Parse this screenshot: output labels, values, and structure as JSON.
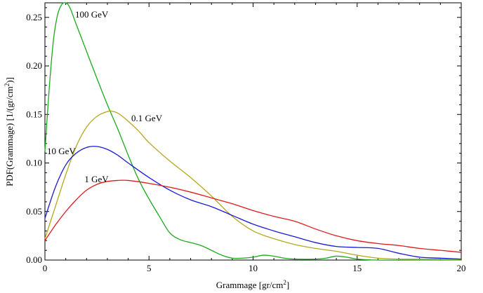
{
  "chart_data": {
    "type": "line",
    "xlabel": "Grammage [gr/cm",
    "xlabel_sup": "2",
    "xlabel_end": "]",
    "ylabel": "PDF(Grammage) [1/(gr/cm",
    "ylabel_sup": "2",
    "ylabel_end": ")]",
    "xlim": [
      0,
      20
    ],
    "ylim": [
      0,
      0.265
    ],
    "xticks": [
      0,
      5,
      10,
      15,
      20
    ],
    "xtick_labels": [
      "0",
      "5",
      "10",
      "15",
      "20"
    ],
    "yticks": [
      0.0,
      0.05,
      0.1,
      0.15,
      0.2,
      0.25
    ],
    "ytick_labels": [
      "0.00",
      "0.05",
      "0.10",
      "0.15",
      "0.20",
      "0.25"
    ],
    "grid": false,
    "series": [
      {
        "name": "100 GeV",
        "color": "#1aaa1a",
        "x": [
          0,
          0.2,
          0.4,
          0.6,
          0.8,
          1.0,
          1.2,
          1.5,
          2.0,
          2.5,
          3.0,
          3.5,
          4.0,
          4.5,
          5.0,
          5.5,
          6.0,
          6.5,
          7.0,
          7.5,
          8.0,
          8.5,
          9.0,
          9.5,
          10.0,
          10.5,
          11.0,
          11.5,
          12.0,
          13.0,
          13.5,
          14.0,
          14.5,
          15.0,
          16.0,
          18.0,
          20.0
        ],
        "y": [
          0.112,
          0.175,
          0.225,
          0.252,
          0.263,
          0.265,
          0.26,
          0.243,
          0.215,
          0.187,
          0.16,
          0.135,
          0.108,
          0.083,
          0.063,
          0.045,
          0.028,
          0.021,
          0.018,
          0.015,
          0.01,
          0.005,
          0.002,
          0.002,
          0.003,
          0.005,
          0.004,
          0.002,
          0.001,
          0.001,
          0.002,
          0.004,
          0.003,
          0.001,
          0.0,
          0.0,
          0.0
        ]
      },
      {
        "name": "0.1 GeV",
        "color": "#b5a71c",
        "x": [
          0,
          0.5,
          1.0,
          1.5,
          2.0,
          2.5,
          3.0,
          3.3,
          3.6,
          4.0,
          4.5,
          5.0,
          6.0,
          7.0,
          8.0,
          9.0,
          10.0,
          11.0,
          12.0,
          13.0,
          14.0,
          15.0,
          16.0,
          17.0,
          18.0,
          19.0,
          20.0
        ],
        "y": [
          0.022,
          0.055,
          0.088,
          0.117,
          0.137,
          0.148,
          0.153,
          0.153,
          0.15,
          0.143,
          0.133,
          0.121,
          0.102,
          0.085,
          0.066,
          0.045,
          0.03,
          0.022,
          0.016,
          0.012,
          0.009,
          0.005,
          0.002,
          0.001,
          0.001,
          0.001,
          0.001
        ]
      },
      {
        "name": "10 GeV",
        "color": "#1a1ad6",
        "x": [
          0,
          0.5,
          1.0,
          1.5,
          2.0,
          2.5,
          3.0,
          3.5,
          4.0,
          5.0,
          6.0,
          7.0,
          8.0,
          9.0,
          10.0,
          11.0,
          12.0,
          13.0,
          14.0,
          15.0,
          16.0,
          17.0,
          18.0,
          19.0,
          20.0
        ],
        "y": [
          0.043,
          0.075,
          0.098,
          0.11,
          0.116,
          0.117,
          0.114,
          0.108,
          0.1,
          0.085,
          0.072,
          0.062,
          0.055,
          0.046,
          0.037,
          0.03,
          0.024,
          0.018,
          0.014,
          0.013,
          0.012,
          0.007,
          0.003,
          0.002,
          0.001
        ]
      },
      {
        "name": "1 GeV",
        "color": "#e01a1a",
        "x": [
          0,
          0.5,
          1.0,
          1.5,
          2.0,
          2.5,
          3.0,
          3.5,
          4.0,
          5.0,
          6.0,
          7.0,
          8.0,
          9.0,
          10.0,
          11.0,
          12.0,
          13.0,
          14.0,
          15.0,
          16.0,
          17.0,
          18.0,
          19.0,
          20.0
        ],
        "y": [
          0.02,
          0.036,
          0.05,
          0.062,
          0.072,
          0.078,
          0.081,
          0.082,
          0.082,
          0.079,
          0.075,
          0.07,
          0.064,
          0.058,
          0.051,
          0.045,
          0.04,
          0.032,
          0.025,
          0.02,
          0.017,
          0.015,
          0.012,
          0.01,
          0.008
        ]
      }
    ],
    "labels": [
      {
        "text": "100 GeV",
        "x": 1.45,
        "y": 0.25
      },
      {
        "text": "0.1 GeV",
        "x": 4.15,
        "y": 0.143
      },
      {
        "text": "10 GeV",
        "x": 0.1,
        "y": 0.109
      },
      {
        "text": "1 GeV",
        "x": 1.9,
        "y": 0.08
      }
    ]
  }
}
